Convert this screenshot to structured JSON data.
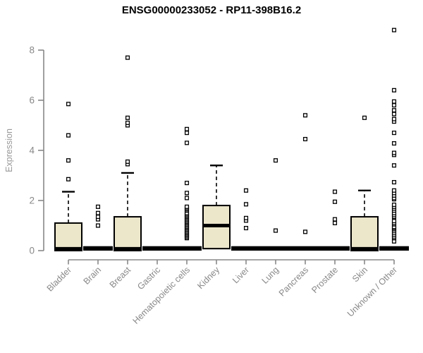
{
  "chart_data": {
    "type": "boxplot",
    "title": "ENSG00000233052 - RP11-398B16.2",
    "xlabel": "",
    "ylabel": "Expression",
    "ylim": [
      0,
      8.9
    ],
    "yticks": [
      0,
      2,
      4,
      6,
      8
    ],
    "grid": false,
    "legend": "none",
    "categories": [
      "Bladder",
      "Brain",
      "Breast",
      "Gastric",
      "Hematopoietic cells",
      "Kidney",
      "Liver",
      "Lung",
      "Pancreas",
      "Prostate",
      "Skin",
      "Unknown / Other"
    ],
    "series": [
      {
        "category": "Bladder",
        "q1": 0,
        "median": 0,
        "q3": 1.1,
        "whisker_low": 0,
        "whisker_high": 2.35,
        "outliers": [
          2.85,
          3.6,
          4.6,
          5.85
        ]
      },
      {
        "category": "Brain",
        "q1": 0,
        "median": 0,
        "q3": 0,
        "whisker_low": 0,
        "whisker_high": 0,
        "outliers": [
          1.0,
          1.25,
          1.35,
          1.5,
          1.75
        ]
      },
      {
        "category": "Breast",
        "q1": 0,
        "median": 0,
        "q3": 1.35,
        "whisker_low": 0,
        "whisker_high": 3.1,
        "outliers": [
          3.45,
          3.55,
          5.0,
          5.1,
          5.3,
          7.7
        ]
      },
      {
        "category": "Gastric",
        "q1": 0,
        "median": 0,
        "q3": 0,
        "whisker_low": 0,
        "whisker_high": 0,
        "outliers": []
      },
      {
        "category": "Hematopoietic cells",
        "q1": 0,
        "median": 0,
        "q3": 0,
        "whisker_low": 0,
        "whisker_high": 0,
        "outliers": [
          0.5,
          0.55,
          0.6,
          0.65,
          0.7,
          0.75,
          0.8,
          0.85,
          0.9,
          0.95,
          1.0,
          1.05,
          1.1,
          1.15,
          1.2,
          1.25,
          1.3,
          1.35,
          1.4,
          1.45,
          1.5,
          1.6,
          1.65,
          1.7,
          1.75,
          2.1,
          2.3,
          2.7,
          4.3,
          4.7,
          4.85
        ]
      },
      {
        "category": "Kidney",
        "q1": 0.08,
        "median": 1.0,
        "q3": 1.8,
        "whisker_low": 0.08,
        "whisker_high": 3.4,
        "outliers": []
      },
      {
        "category": "Liver",
        "q1": 0,
        "median": 0,
        "q3": 0,
        "whisker_low": 0,
        "whisker_high": 0,
        "outliers": [
          0.9,
          1.2,
          1.3,
          1.85,
          2.4
        ]
      },
      {
        "category": "Lung",
        "q1": 0,
        "median": 0,
        "q3": 0,
        "whisker_low": 0,
        "whisker_high": 0,
        "outliers": [
          0.8,
          3.6
        ]
      },
      {
        "category": "Pancreas",
        "q1": 0,
        "median": 0,
        "q3": 0,
        "whisker_low": 0,
        "whisker_high": 0,
        "outliers": [
          0.75,
          4.45,
          5.4
        ]
      },
      {
        "category": "Prostate",
        "q1": 0,
        "median": 0,
        "q3": 0,
        "whisker_low": 0,
        "whisker_high": 0,
        "outliers": [
          1.1,
          1.25,
          1.95,
          2.35
        ]
      },
      {
        "category": "Skin",
        "q1": 0,
        "median": 0,
        "q3": 1.35,
        "whisker_low": 0,
        "whisker_high": 2.4,
        "outliers": [
          5.3
        ]
      },
      {
        "category": "Unknown / Other",
        "q1": 0,
        "median": 0,
        "q3": 0,
        "whisker_low": 0,
        "whisker_high": 0,
        "outliers": [
          0.37,
          0.5,
          0.55,
          0.62,
          0.7,
          0.78,
          0.85,
          0.9,
          0.95,
          1.05,
          1.1,
          1.18,
          1.35,
          1.42,
          1.5,
          1.6,
          1.68,
          1.75,
          1.83,
          2.05,
          2.1,
          2.2,
          2.3,
          2.4,
          2.73,
          3.4,
          3.82,
          3.9,
          4.28,
          4.7,
          5.15,
          5.25,
          5.45,
          5.6,
          5.8,
          5.95,
          6.4,
          8.8
        ]
      }
    ],
    "colors": {
      "box_fill": "#ECE6CB",
      "box_stroke": "#000000",
      "median": "#000000",
      "outlier_stroke": "#000000",
      "outlier_fill": "#ffffff",
      "axis": "#888888",
      "tick_label": "#888888",
      "axis_title": "#999999",
      "title": "#000000",
      "background": "#ffffff"
    }
  }
}
